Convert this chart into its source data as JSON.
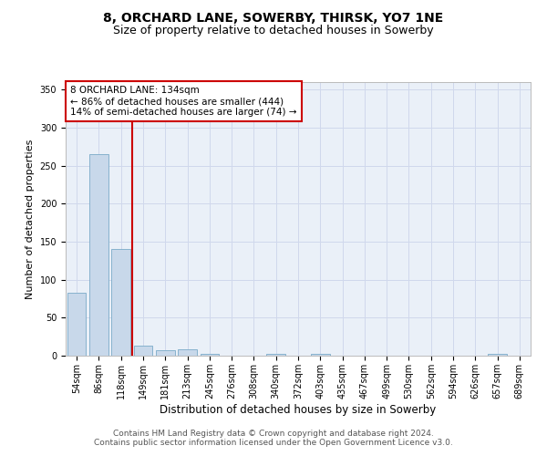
{
  "title": "8, ORCHARD LANE, SOWERBY, THIRSK, YO7 1NE",
  "subtitle": "Size of property relative to detached houses in Sowerby",
  "xlabel": "Distribution of detached houses by size in Sowerby",
  "ylabel": "Number of detached properties",
  "bar_color": "#c8d8ea",
  "bar_edge_color": "#7aaac8",
  "vline_color": "#cc0000",
  "vline_x": 2.5,
  "categories": [
    "54sqm",
    "86sqm",
    "118sqm",
    "149sqm",
    "181sqm",
    "213sqm",
    "245sqm",
    "276sqm",
    "308sqm",
    "340sqm",
    "372sqm",
    "403sqm",
    "435sqm",
    "467sqm",
    "499sqm",
    "530sqm",
    "562sqm",
    "594sqm",
    "626sqm",
    "657sqm",
    "689sqm"
  ],
  "values": [
    83,
    265,
    141,
    13,
    7,
    9,
    2,
    0,
    0,
    3,
    0,
    2,
    0,
    0,
    0,
    0,
    0,
    0,
    0,
    3,
    0
  ],
  "ylim": [
    0,
    360
  ],
  "yticks": [
    0,
    50,
    100,
    150,
    200,
    250,
    300,
    350
  ],
  "annotation_text": "8 ORCHARD LANE: 134sqm\n← 86% of detached houses are smaller (444)\n14% of semi-detached houses are larger (74) →",
  "annotation_box_color": "#ffffff",
  "annotation_box_edge_color": "#cc0000",
  "grid_color": "#d0d8ec",
  "background_color": "#eaf0f8",
  "footer_line1": "Contains HM Land Registry data © Crown copyright and database right 2024.",
  "footer_line2": "Contains public sector information licensed under the Open Government Licence v3.0.",
  "title_fontsize": 10,
  "subtitle_fontsize": 9,
  "xlabel_fontsize": 8.5,
  "ylabel_fontsize": 8,
  "tick_fontsize": 7,
  "annotation_fontsize": 7.5,
  "footer_fontsize": 6.5
}
